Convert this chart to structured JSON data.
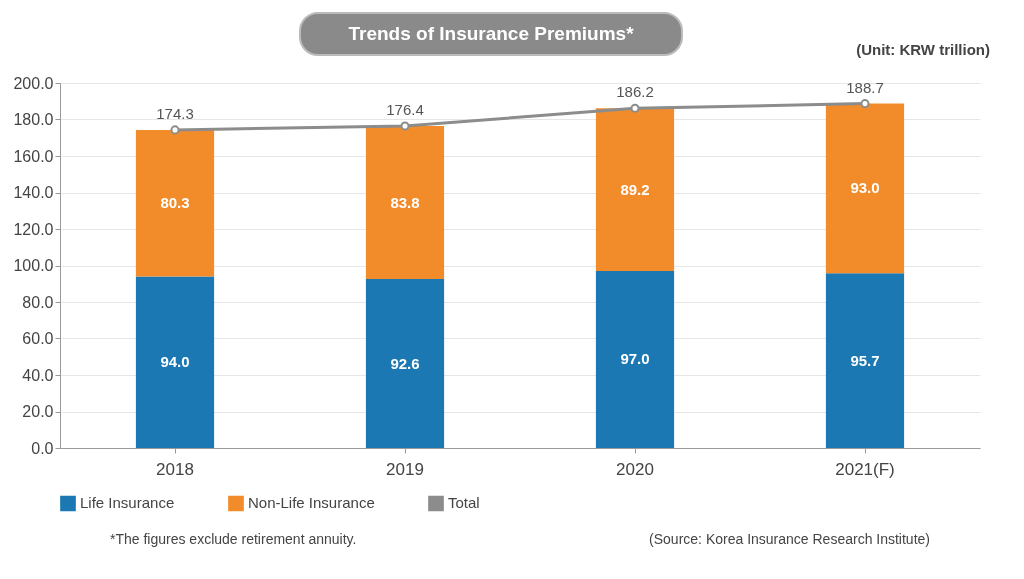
{
  "chart_data": {
    "type": "bar",
    "title": "Trends of Insurance Premiums*",
    "categories": [
      "2018",
      "2019",
      "2020",
      "2021(F)"
    ],
    "stacked": true,
    "series": [
      {
        "name": "Life Insurance",
        "color": "#1b78b2",
        "values": [
          94.0,
          92.6,
          97.0,
          95.7
        ],
        "value_labels": [
          "94.0",
          "92.6",
          "97.0",
          "95.7"
        ]
      },
      {
        "name": "Non-Life Insurance",
        "color": "#f28c2a",
        "values": [
          80.3,
          83.8,
          89.2,
          93.0
        ],
        "value_labels": [
          "80.3",
          "83.8",
          "89.2",
          "93.0"
        ]
      },
      {
        "name": "Total",
        "type": "line",
        "color": "#8c8c8c",
        "marker": "circle",
        "values": [
          174.3,
          176.4,
          186.2,
          188.7
        ],
        "value_labels": [
          "174.3",
          "176.4",
          "186.2",
          "188.7"
        ]
      }
    ],
    "ylim": [
      0,
      200
    ],
    "yticks": [
      {
        "value": 0,
        "label": "0.0"
      },
      {
        "value": 20,
        "label": "20.0"
      },
      {
        "value": 40,
        "label": "40.0"
      },
      {
        "value": 60,
        "label": "60.0"
      },
      {
        "value": 80,
        "label": "80.0"
      },
      {
        "value": 100,
        "label": "100.0"
      },
      {
        "value": 120,
        "label": "120.0"
      },
      {
        "value": 140,
        "label": "140.0"
      },
      {
        "value": 160,
        "label": "160.0"
      },
      {
        "value": 180,
        "label": "180.0"
      },
      {
        "value": 200,
        "label": "200.0"
      }
    ],
    "grid": "y",
    "legend": "bottom",
    "annotations": [
      "(Unit: KRW trillion)",
      "*The figures exclude retirement annuity.",
      "(Source: Korea Insurance Research Institute)"
    ]
  }
}
